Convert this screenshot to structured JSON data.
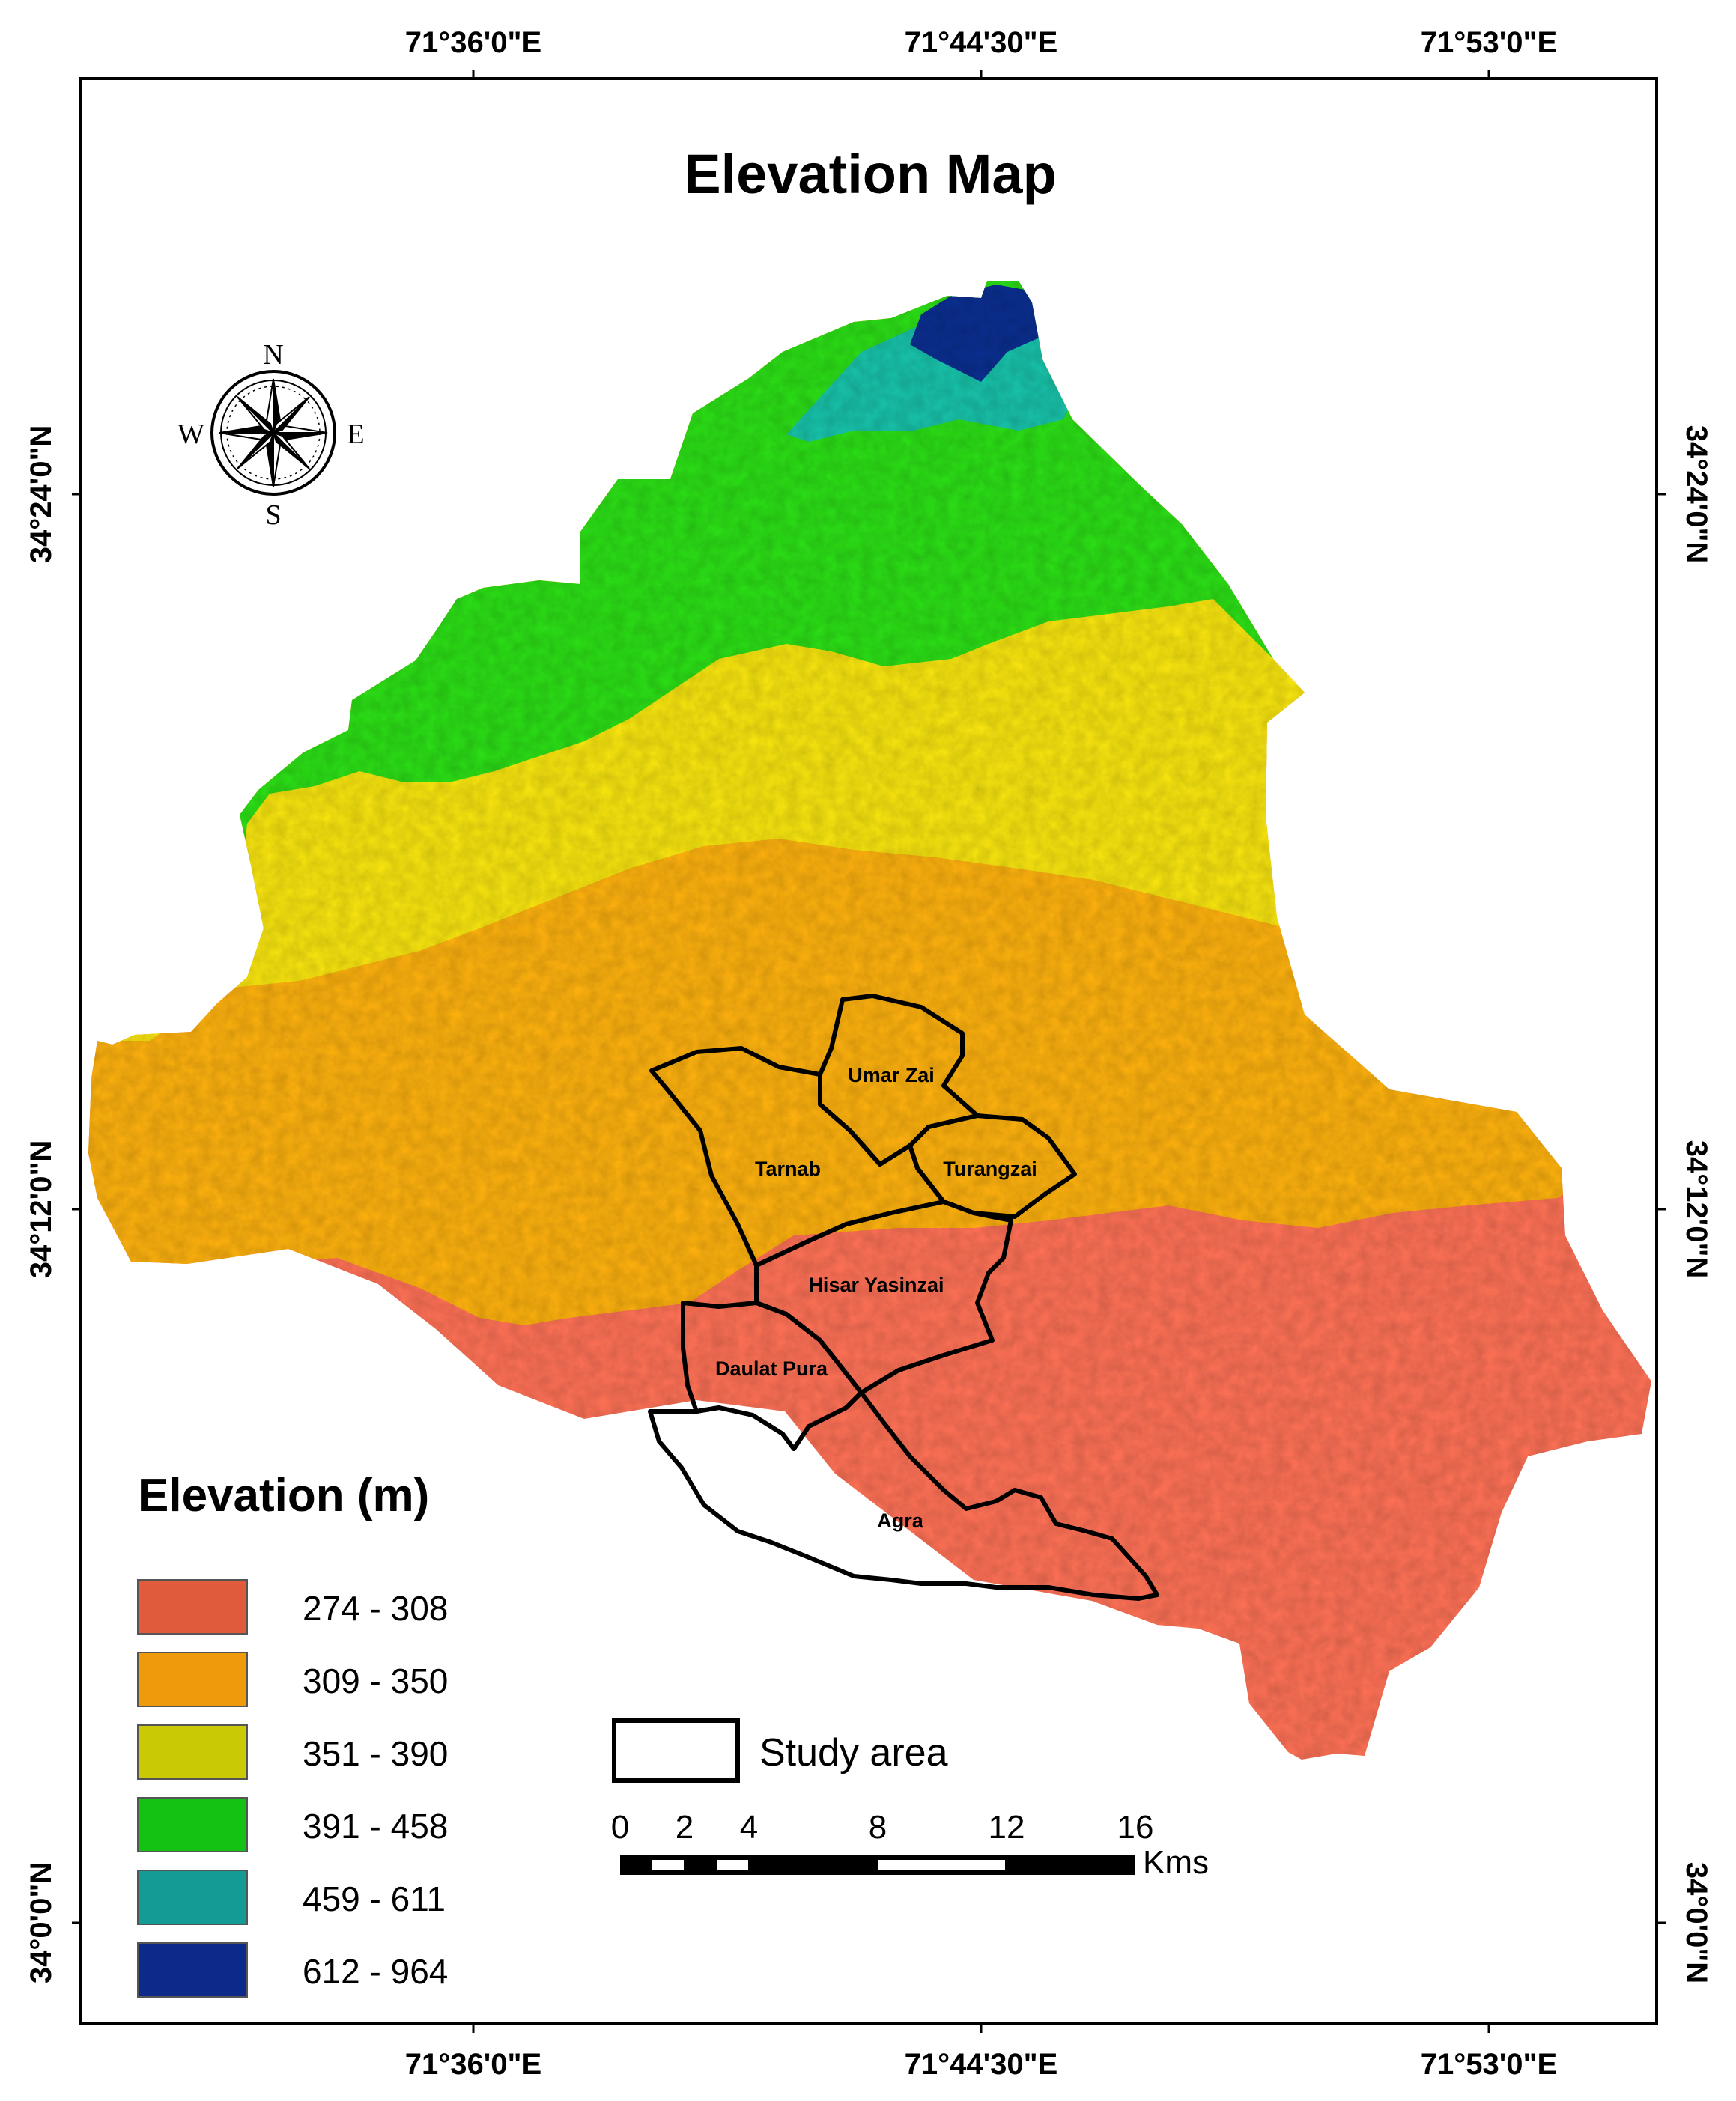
{
  "map_title": "Elevation Map",
  "coordinates": {
    "top": [
      "71°36'0\"E",
      "71°44'30\"E",
      "71°53'0\"E"
    ],
    "bottom": [
      "71°36'0\"E",
      "71°44'30\"E",
      "71°53'0\"E"
    ],
    "left": [
      "34°24'0\"N",
      "34°12'0\"N",
      "34°0'0\"N"
    ],
    "right": [
      "34°24'0\"N",
      "34°12'0\"N",
      "34°0'0\"N"
    ]
  },
  "compass": {
    "north": "N",
    "south": "S",
    "east": "E",
    "west": "W"
  },
  "districts": {
    "umar_zai": "Umar Zai",
    "tarnab": "Tarnab",
    "turangzai": "Turangzai",
    "hisar_yasinzai": "Hisar Yasinzai",
    "daulat_pura": "Daulat Pura",
    "agra": "Agra"
  },
  "legend": {
    "title": "Elevation (m)",
    "items": [
      {
        "label": "274 - 308",
        "color": "#E05A3C"
      },
      {
        "label": "309 - 350",
        "color": "#EE9A0A"
      },
      {
        "label": "351 - 390",
        "color": "#C9C905"
      },
      {
        "label": "391 - 458",
        "color": "#14C214"
      },
      {
        "label": "459 - 611",
        "color": "#129C95"
      },
      {
        "label": "612 - 964",
        "color": "#0C2A8A"
      }
    ]
  },
  "study_area_label": "Study area",
  "scale_bar": {
    "ticks": [
      "0",
      "2",
      "4",
      "8",
      "12",
      "16"
    ],
    "unit": "Kms"
  }
}
